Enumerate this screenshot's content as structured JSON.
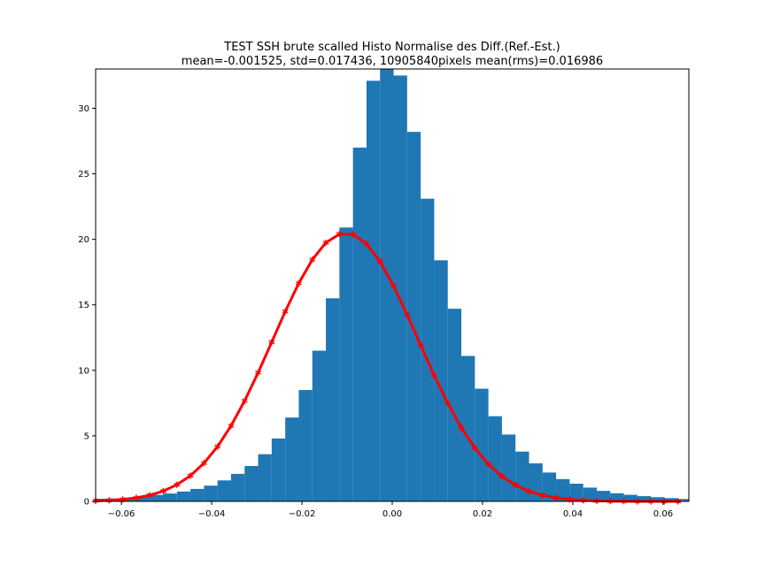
{
  "chart_data": {
    "type": "bar",
    "title_line1": "TEST SSH brute scalled Histo Normalise des Diff.(Ref.-Est.)",
    "title_line2": "mean=-0.001525, std=0.017436, 10905840pixels mean(rms)=0.016986",
    "xlabel": "",
    "ylabel": "",
    "xlim": [
      -0.0657,
      0.0657
    ],
    "ylim": [
      0,
      33
    ],
    "x_ticks": [
      -0.06,
      -0.04,
      -0.02,
      0.0,
      0.02,
      0.04,
      0.06
    ],
    "x_tick_labels": [
      "−0.06",
      "−0.04",
      "−0.02",
      "0.00",
      "0.02",
      "0.04",
      "0.06"
    ],
    "y_ticks": [
      0,
      5,
      10,
      15,
      20,
      25,
      30
    ],
    "y_tick_labels": [
      "0",
      "5",
      "10",
      "15",
      "20",
      "25",
      "30"
    ],
    "grid": false,
    "colors": {
      "bars": "#1f77b4",
      "fit_curve": "#ff0000"
    },
    "series": [
      {
        "type": "histogram",
        "bin_edges": [
          -0.0657,
          -0.0627,
          -0.0597,
          -0.0567,
          -0.0537,
          -0.0507,
          -0.0477,
          -0.0447,
          -0.0417,
          -0.0387,
          -0.0357,
          -0.0327,
          -0.0297,
          -0.0267,
          -0.0237,
          -0.0207,
          -0.0177,
          -0.0147,
          -0.0117,
          -0.0087,
          -0.0057,
          -0.0027,
          0.0003,
          0.0033,
          0.0063,
          0.0093,
          0.0123,
          0.0153,
          0.0183,
          0.0213,
          0.0243,
          0.0273,
          0.0303,
          0.0333,
          0.0363,
          0.0393,
          0.0423,
          0.0453,
          0.0483,
          0.0513,
          0.0543,
          0.0573,
          0.0603,
          0.0633,
          0.0657
        ],
        "values": [
          0.2,
          0.22,
          0.28,
          0.35,
          0.5,
          0.6,
          0.75,
          0.95,
          1.2,
          1.6,
          2.1,
          2.7,
          3.6,
          4.8,
          6.4,
          8.5,
          11.5,
          15.5,
          20.9,
          27.0,
          32.1,
          33.0,
          32.5,
          28.2,
          23.1,
          18.4,
          14.7,
          11.1,
          8.6,
          6.5,
          5.1,
          3.8,
          2.9,
          2.2,
          1.7,
          1.35,
          1.05,
          0.8,
          0.62,
          0.5,
          0.4,
          0.32,
          0.25,
          0.18
        ]
      },
      {
        "type": "line",
        "marker": "*",
        "x": [
          -0.0657,
          -0.0627,
          -0.0597,
          -0.0567,
          -0.0537,
          -0.0507,
          -0.0477,
          -0.0447,
          -0.0417,
          -0.0387,
          -0.0357,
          -0.0327,
          -0.0297,
          -0.0267,
          -0.0237,
          -0.0207,
          -0.0177,
          -0.0147,
          -0.0117,
          -0.0087,
          -0.0057,
          -0.0027,
          0.0003,
          0.0033,
          0.0063,
          0.0093,
          0.0123,
          0.0153,
          0.0183,
          0.0213,
          0.0243,
          0.0273,
          0.0303,
          0.0333,
          0.0363,
          0.0393,
          0.0423,
          0.0453,
          0.0483,
          0.0513,
          0.0543,
          0.0573,
          0.0603,
          0.0633
        ],
        "y": [
          0.04,
          0.08,
          0.15,
          0.27,
          0.47,
          0.79,
          1.27,
          1.96,
          2.92,
          4.18,
          5.77,
          7.67,
          9.83,
          12.15,
          14.49,
          16.65,
          18.45,
          19.74,
          20.4,
          20.37,
          19.65,
          18.3,
          16.44,
          14.25,
          11.92,
          9.62,
          7.49,
          5.62,
          4.07,
          2.84,
          1.91,
          1.24,
          0.77,
          0.46,
          0.27,
          0.15,
          0.08,
          0.04,
          0.02,
          0.01,
          0.0,
          0.0,
          0.0,
          0.0
        ]
      }
    ]
  }
}
